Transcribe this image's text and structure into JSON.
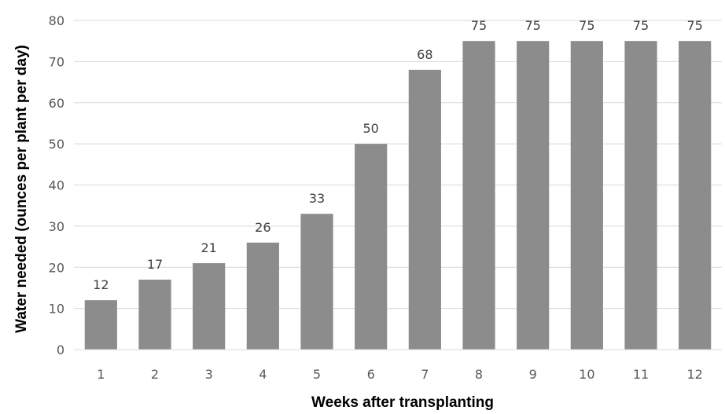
{
  "chart_data": {
    "type": "bar",
    "categories": [
      "1",
      "2",
      "3",
      "4",
      "5",
      "6",
      "7",
      "8",
      "9",
      "10",
      "11",
      "12"
    ],
    "values": [
      12,
      17,
      21,
      26,
      33,
      50,
      68,
      75,
      75,
      75,
      75,
      75
    ],
    "data_labels": [
      "12",
      "17",
      "21",
      "26",
      "33",
      "50",
      "68",
      "75",
      "75",
      "75",
      "75",
      "75"
    ],
    "xlabel": "Weeks after transplanting",
    "ylabel": "Water needed (ounces per plant per day)",
    "ylim": [
      0,
      80
    ],
    "yticks": [
      0,
      10,
      20,
      30,
      40,
      50,
      60,
      70,
      80
    ],
    "ytick_labels": [
      "0",
      "10",
      "20",
      "30",
      "40",
      "50",
      "60",
      "70",
      "80"
    ],
    "grid": true,
    "legend": "none",
    "colors": {
      "bar": "#8c8c8c",
      "grid": "#d9d9d9"
    }
  }
}
